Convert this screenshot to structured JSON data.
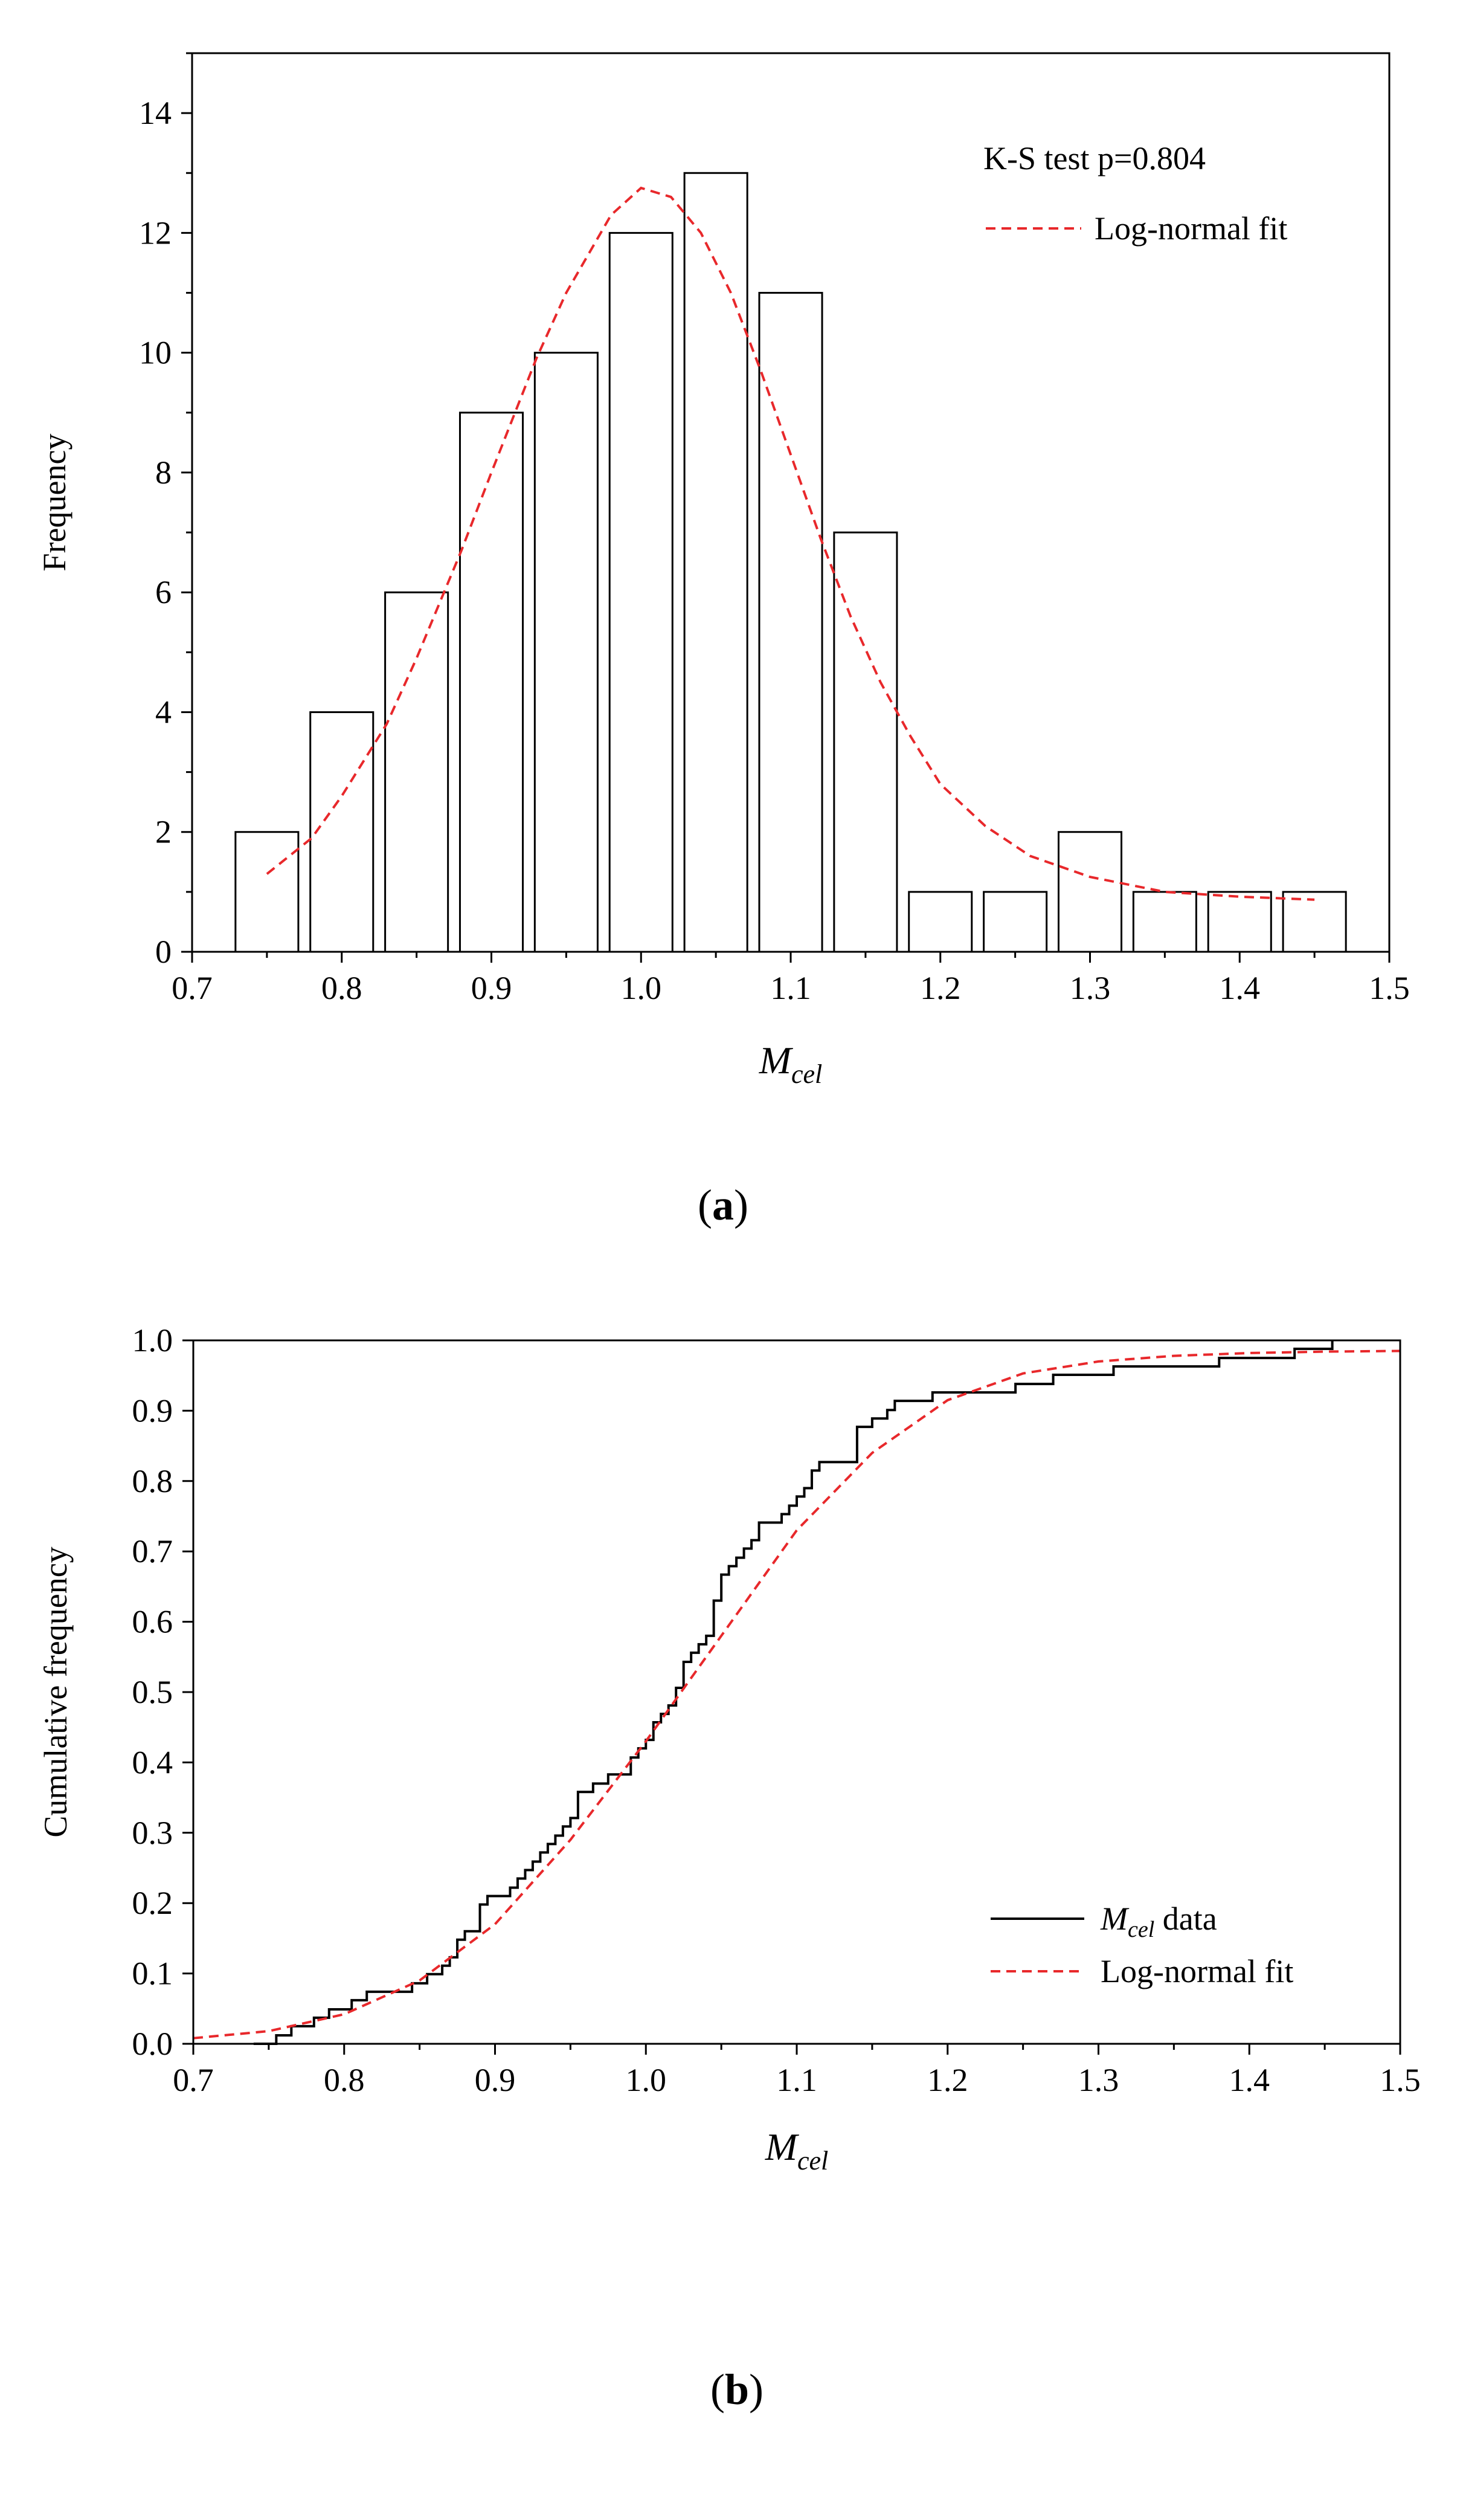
{
  "colors": {
    "axis": "#000000",
    "bar_stroke": "#000000",
    "bar_fill": "#ffffff",
    "fit": "#e8282b",
    "data_line": "#000000"
  },
  "chart_data": [
    {
      "id": "a",
      "type": "bar",
      "panel_label": "a",
      "xlabel": {
        "main": "M",
        "sub": "cel"
      },
      "ylabel": "Frequency",
      "xlim": [
        0.7,
        1.5
      ],
      "ylim": [
        0,
        15
      ],
      "xticks": [
        "0.7",
        "0.8",
        "0.9",
        "1.0",
        "1.1",
        "1.2",
        "1.3",
        "1.4",
        "1.5"
      ],
      "yticks": [
        "0",
        "2",
        "4",
        "6",
        "8",
        "10",
        "12",
        "14"
      ],
      "bar_width": 0.042,
      "bars": [
        {
          "x": 0.75,
          "value": 2
        },
        {
          "x": 0.8,
          "value": 4
        },
        {
          "x": 0.85,
          "value": 6
        },
        {
          "x": 0.9,
          "value": 9
        },
        {
          "x": 0.95,
          "value": 10
        },
        {
          "x": 1.0,
          "value": 12
        },
        {
          "x": 1.05,
          "value": 13
        },
        {
          "x": 1.1,
          "value": 11
        },
        {
          "x": 1.15,
          "value": 7
        },
        {
          "x": 1.2,
          "value": 1
        },
        {
          "x": 1.25,
          "value": 1
        },
        {
          "x": 1.3,
          "value": 2
        },
        {
          "x": 1.35,
          "value": 1
        },
        {
          "x": 1.4,
          "value": 1
        },
        {
          "x": 1.45,
          "value": 1
        }
      ],
      "fit_curve": {
        "name": "Log-normal fit",
        "points": [
          [
            0.75,
            1.3
          ],
          [
            0.78,
            1.9
          ],
          [
            0.8,
            2.6
          ],
          [
            0.83,
            3.8
          ],
          [
            0.85,
            4.9
          ],
          [
            0.88,
            6.7
          ],
          [
            0.9,
            8.0
          ],
          [
            0.93,
            9.9
          ],
          [
            0.95,
            11.0
          ],
          [
            0.98,
            12.3
          ],
          [
            1.0,
            12.75
          ],
          [
            1.02,
            12.6
          ],
          [
            1.04,
            12.0
          ],
          [
            1.06,
            11.0
          ],
          [
            1.08,
            9.7
          ],
          [
            1.1,
            8.3
          ],
          [
            1.12,
            6.9
          ],
          [
            1.14,
            5.6
          ],
          [
            1.16,
            4.5
          ],
          [
            1.18,
            3.6
          ],
          [
            1.2,
            2.8
          ],
          [
            1.23,
            2.1
          ],
          [
            1.26,
            1.6
          ],
          [
            1.3,
            1.25
          ],
          [
            1.35,
            1.0
          ],
          [
            1.4,
            0.92
          ],
          [
            1.45,
            0.87
          ]
        ]
      },
      "annotation": "K-S test p=0.804",
      "legend": [
        {
          "label": "Log-normal fit",
          "style": "dashed"
        }
      ]
    },
    {
      "id": "b",
      "type": "line",
      "panel_label": "b",
      "xlabel": {
        "main": "M",
        "sub": "cel"
      },
      "ylabel": "Cumulative frequency",
      "xlim": [
        0.7,
        1.5
      ],
      "ylim": [
        0,
        1.0
      ],
      "xticks": [
        "0.7",
        "0.8",
        "0.9",
        "1.0",
        "1.1",
        "1.2",
        "1.3",
        "1.4",
        "1.5"
      ],
      "yticks": [
        "0.0",
        "0.1",
        "0.2",
        "0.3",
        "0.4",
        "0.5",
        "0.6",
        "0.7",
        "0.8",
        "0.9",
        "1.0"
      ],
      "series": [
        {
          "name": "M_cel data",
          "style": "step",
          "x": [
            0.755,
            0.765,
            0.78,
            0.79,
            0.8,
            0.805,
            0.815,
            0.825,
            0.835,
            0.845,
            0.855,
            0.865,
            0.87,
            0.875,
            0.88,
            0.885,
            0.89,
            0.895,
            0.905,
            0.91,
            0.915,
            0.92,
            0.925,
            0.93,
            0.935,
            0.94,
            0.945,
            0.95,
            0.955,
            0.96,
            0.965,
            0.975,
            0.985,
            0.99,
            0.995,
            1.0,
            1.005,
            1.01,
            1.015,
            1.02,
            1.025,
            1.03,
            1.035,
            1.04,
            1.045,
            1.05,
            1.055,
            1.06,
            1.065,
            1.07,
            1.075,
            1.08,
            1.09,
            1.095,
            1.1,
            1.105,
            1.11,
            1.115,
            1.125,
            1.13,
            1.14,
            1.145,
            1.15,
            1.155,
            1.16,
            1.165,
            1.175,
            1.185,
            1.19,
            1.21,
            1.225,
            1.245,
            1.27,
            1.29,
            1.31,
            1.35,
            1.38,
            1.41,
            1.43,
            1.455
          ],
          "y": [
            0.012,
            0.025,
            0.037,
            0.049,
            0.049,
            0.062,
            0.074,
            0.074,
            0.074,
            0.086,
            0.099,
            0.111,
            0.123,
            0.148,
            0.16,
            0.16,
            0.198,
            0.21,
            0.21,
            0.222,
            0.235,
            0.247,
            0.259,
            0.272,
            0.284,
            0.296,
            0.309,
            0.321,
            0.358,
            0.358,
            0.37,
            0.383,
            0.383,
            0.407,
            0.42,
            0.432,
            0.457,
            0.469,
            0.481,
            0.506,
            0.543,
            0.556,
            0.568,
            0.58,
            0.63,
            0.667,
            0.679,
            0.691,
            0.704,
            0.716,
            0.741,
            0.741,
            0.753,
            0.765,
            0.778,
            0.79,
            0.815,
            0.827,
            0.827,
            0.827,
            0.877,
            0.877,
            0.889,
            0.889,
            0.901,
            0.914,
            0.914,
            0.914,
            0.926,
            0.926,
            0.926,
            0.938,
            0.951,
            0.951,
            0.963,
            0.963,
            0.975,
            0.975,
            0.988,
            1.0
          ]
        },
        {
          "name": "Log-normal fit",
          "style": "dashed",
          "points": [
            [
              0.7,
              0.008
            ],
            [
              0.75,
              0.018
            ],
            [
              0.8,
              0.042
            ],
            [
              0.85,
              0.09
            ],
            [
              0.9,
              0.17
            ],
            [
              0.95,
              0.29
            ],
            [
              1.0,
              0.43
            ],
            [
              1.05,
              0.58
            ],
            [
              1.1,
              0.73
            ],
            [
              1.15,
              0.84
            ],
            [
              1.2,
              0.915
            ],
            [
              1.25,
              0.953
            ],
            [
              1.3,
              0.97
            ],
            [
              1.35,
              0.978
            ],
            [
              1.4,
              0.982
            ],
            [
              1.45,
              0.984
            ],
            [
              1.5,
              0.985
            ]
          ]
        }
      ],
      "legend": [
        {
          "label_main": "M",
          "label_sub": "cel",
          "label_rest": " data",
          "style": "solid"
        },
        {
          "label": "Log-normal fit",
          "style": "dashed"
        }
      ]
    }
  ]
}
